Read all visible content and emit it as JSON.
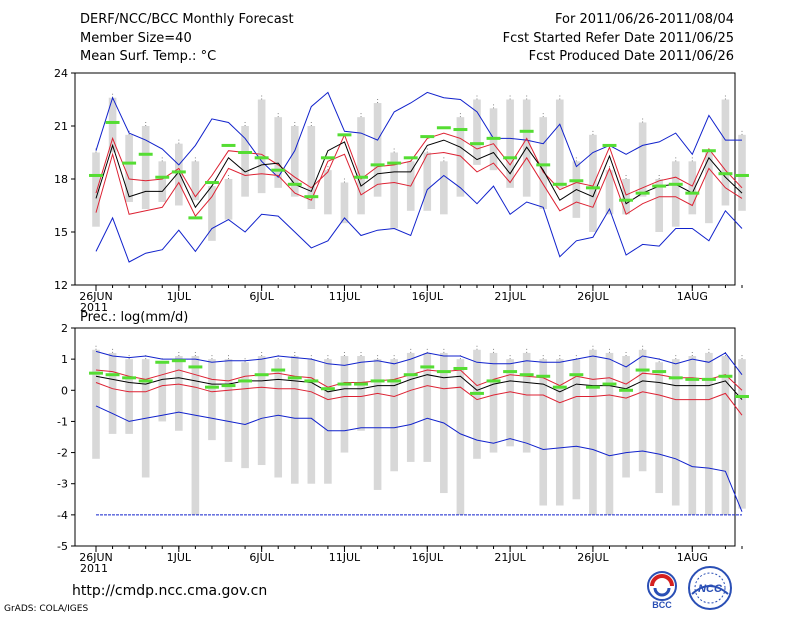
{
  "header": {
    "title": "DERF/NCC/BCC Monthly Forecast",
    "member": "Member Size=40",
    "variable": "Mean Surf. Temp.: °C",
    "range": "For 2011/06/26-2011/08/04",
    "start": "Fcst Started Refer Date 2011/06/25",
    "produced": "Fcst Produced Date 2011/06/26"
  },
  "footer": {
    "url": "http://cmdp.ncc.cma.gov.cn",
    "grads": "GrADS: COLA/IGES",
    "logo_bcc": "BCC",
    "logo_ncc": "NCC"
  },
  "colors": {
    "box": "#d8d8d8",
    "median": "#55dd33",
    "mean": "#000000",
    "inner": "#dd2233",
    "outer": "#1122cc"
  },
  "chart_data": [
    {
      "type": "box-line",
      "title": "Mean Surf. Temp.: °C",
      "xlabel": "",
      "ylabel": "°C",
      "ylim": [
        12,
        24
      ],
      "yticks": [
        12,
        15,
        18,
        21,
        24
      ],
      "xticks": [
        {
          "day": 0,
          "label": "26JUN",
          "sub": "2011"
        },
        {
          "day": 5,
          "label": "1JUL"
        },
        {
          "day": 10,
          "label": "6JUL"
        },
        {
          "day": 15,
          "label": "11JUL"
        },
        {
          "day": 20,
          "label": "16JUL"
        },
        {
          "day": 25,
          "label": "21JUL"
        },
        {
          "day": 30,
          "label": "26JUL"
        },
        {
          "day": 36,
          "label": "1AUG"
        }
      ],
      "days": 40,
      "box_low": [
        15.3,
        19.5,
        16.7,
        16.3,
        16.7,
        16.5,
        16.8,
        14.5,
        15.7,
        17.0,
        17.2,
        17.5,
        17.0,
        16.3,
        16.0,
        15.5,
        16.0,
        17.0,
        15.2,
        16.2,
        16.2,
        16.0,
        17.0,
        18.8,
        18.5,
        17.5,
        17.0,
        16.3,
        17.5,
        15.8,
        15.0,
        16.0,
        16.0,
        17.0,
        15.0,
        15.3,
        16.0,
        15.5,
        16.5,
        16.2
      ],
      "box_high": [
        19.5,
        22.6,
        20.5,
        21.0,
        19.0,
        20.0,
        19.0,
        17.6,
        18.0,
        21.0,
        22.5,
        21.5,
        21.0,
        21.0,
        18.5,
        17.8,
        21.5,
        22.3,
        19.5,
        19.0,
        19.5,
        19.0,
        21.5,
        22.5,
        22.0,
        22.5,
        22.5,
        21.5,
        22.5,
        19.0,
        20.5,
        18.5,
        18.0,
        21.2,
        18.0,
        19.0,
        19.0,
        19.5,
        22.5,
        20.5
      ],
      "series": [
        {
          "name": "median",
          "values": [
            18.2,
            21.2,
            18.9,
            19.4,
            18.1,
            18.4,
            15.8,
            17.8,
            19.9,
            19.5,
            19.2,
            18.5,
            17.7,
            17.0,
            19.2,
            20.5,
            18.1,
            18.8,
            18.9,
            19.2,
            20.4,
            20.9,
            20.8,
            20.0,
            20.3,
            19.2,
            20.7,
            18.8,
            17.7,
            17.9,
            17.5,
            19.9,
            16.8,
            17.2,
            17.6,
            17.7,
            17.2,
            19.6,
            18.3,
            18.2
          ]
        },
        {
          "name": "outer-max",
          "values": [
            19.6,
            22.6,
            20.6,
            20.2,
            19.7,
            18.8,
            19.9,
            21.4,
            21.2,
            20.3,
            19.0,
            18.1,
            19.6,
            22.1,
            22.9,
            20.7,
            20.6,
            20.2,
            21.8,
            22.3,
            22.9,
            22.6,
            22.5,
            21.8,
            20.3,
            20.3,
            20.2,
            20.0,
            21.1,
            18.7,
            19.5,
            19.9,
            19.4,
            19.9,
            20.1,
            20.6,
            19.4,
            21.6,
            20.2,
            20.2
          ]
        },
        {
          "name": "inner-max",
          "values": [
            17.2,
            20.3,
            18.0,
            17.9,
            18.0,
            18.6,
            17.0,
            18.2,
            19.6,
            19.5,
            19.4,
            18.8,
            18.1,
            17.5,
            18.4,
            20.5,
            18.0,
            18.7,
            18.8,
            19.0,
            20.3,
            20.6,
            20.3,
            19.7,
            20.0,
            18.8,
            20.3,
            18.4,
            17.4,
            17.8,
            17.6,
            19.8,
            17.1,
            17.5,
            17.9,
            18.1,
            17.6,
            19.7,
            18.5,
            17.5
          ]
        },
        {
          "name": "mean",
          "values": [
            16.9,
            19.9,
            17.0,
            17.3,
            17.3,
            18.4,
            16.4,
            17.6,
            19.2,
            18.4,
            18.8,
            18.9,
            17.7,
            17.3,
            19.6,
            20.1,
            17.6,
            18.3,
            18.4,
            18.4,
            19.9,
            20.2,
            19.8,
            19.1,
            19.5,
            18.3,
            19.8,
            18.5,
            16.8,
            17.4,
            17.0,
            19.3,
            16.6,
            17.2,
            17.6,
            17.7,
            17.2,
            19.2,
            18.1,
            17.2
          ]
        },
        {
          "name": "inner-min",
          "values": [
            16.1,
            19.4,
            16.0,
            16.2,
            16.4,
            17.8,
            15.9,
            17.0,
            18.6,
            18.2,
            18.3,
            18.2,
            17.2,
            16.8,
            19.0,
            19.4,
            17.1,
            17.7,
            17.8,
            17.6,
            19.4,
            19.5,
            19.3,
            18.4,
            18.9,
            17.8,
            19.2,
            17.7,
            16.2,
            16.7,
            16.4,
            18.6,
            16.0,
            16.6,
            17.0,
            17.0,
            16.5,
            18.6,
            17.5,
            16.9
          ]
        },
        {
          "name": "outer-min",
          "values": [
            13.9,
            15.8,
            13.3,
            13.8,
            14.0,
            15.1,
            13.9,
            15.2,
            15.7,
            15.0,
            16.0,
            15.9,
            15.0,
            14.1,
            14.5,
            15.8,
            14.8,
            15.1,
            15.2,
            14.8,
            17.4,
            18.2,
            17.5,
            16.6,
            17.6,
            16.0,
            16.7,
            16.4,
            13.6,
            14.5,
            14.7,
            16.3,
            13.7,
            14.3,
            14.2,
            15.2,
            15.2,
            14.5,
            16.2,
            15.2
          ]
        }
      ]
    },
    {
      "type": "box-line",
      "title": "Prec.: log(mm/d)",
      "xlabel": "",
      "ylabel": "log(mm/d)",
      "ylim": [
        -5,
        2
      ],
      "yticks": [
        -5,
        -4,
        -3,
        -2,
        -1,
        0,
        1,
        2
      ],
      "xticks": [
        {
          "day": 0,
          "label": "26JUN",
          "sub": "2011"
        },
        {
          "day": 5,
          "label": "1JUL"
        },
        {
          "day": 10,
          "label": "6JUL"
        },
        {
          "day": 15,
          "label": "11JUL"
        },
        {
          "day": 20,
          "label": "16JUL"
        },
        {
          "day": 25,
          "label": "21JUL"
        },
        {
          "day": 30,
          "label": "26JUL"
        },
        {
          "day": 36,
          "label": "1AUG"
        }
      ],
      "days": 40,
      "box_low": [
        -2.2,
        -1.4,
        -1.4,
        -2.8,
        -1.0,
        -1.3,
        -4.0,
        -1.6,
        -2.3,
        -2.5,
        -2.4,
        -2.8,
        -3.0,
        -3.0,
        -3.0,
        -2.0,
        -1.3,
        -3.2,
        -2.6,
        -2.3,
        -2.3,
        -3.3,
        -4.0,
        -2.2,
        -2.0,
        -1.8,
        -2.0,
        -3.7,
        -3.7,
        -3.5,
        -4.0,
        -4.0,
        -2.8,
        -2.6,
        -3.3,
        -3.7,
        -4.0,
        -4.0,
        -4.0,
        -3.8
      ],
      "box_high": [
        1.3,
        1.2,
        1.0,
        1.0,
        0.9,
        1.1,
        1.1,
        1.0,
        1.0,
        0.9,
        1.1,
        1.0,
        1.1,
        1.0,
        1.0,
        1.1,
        1.1,
        1.0,
        1.0,
        1.2,
        1.2,
        1.2,
        1.0,
        1.3,
        1.2,
        1.0,
        1.2,
        1.0,
        1.0,
        1.0,
        1.3,
        1.2,
        1.1,
        1.3,
        0.9,
        1.0,
        1.1,
        1.2,
        1.1,
        1.0
      ],
      "series": [
        {
          "name": "median",
          "values": [
            0.55,
            0.5,
            0.4,
            0.3,
            0.9,
            0.95,
            0.75,
            0.1,
            0.15,
            0.3,
            0.5,
            0.65,
            0.4,
            0.3,
            0.05,
            0.2,
            0.2,
            0.3,
            0.3,
            0.5,
            0.75,
            0.6,
            0.7,
            -0.1,
            0.3,
            0.6,
            0.5,
            0.45,
            0.1,
            0.5,
            0.1,
            0.2,
            0.0,
            0.65,
            0.6,
            0.4,
            0.35,
            0.35,
            0.45,
            -0.2
          ]
        },
        {
          "name": "outer-max",
          "values": [
            1.25,
            1.1,
            1.05,
            1.1,
            1.0,
            1.0,
            1.0,
            0.9,
            0.95,
            0.95,
            1.0,
            1.1,
            1.05,
            1.0,
            0.85,
            0.8,
            0.9,
            0.95,
            0.85,
            1.0,
            1.2,
            1.1,
            1.1,
            0.9,
            0.85,
            0.85,
            0.95,
            0.9,
            0.9,
            1.0,
            1.1,
            1.0,
            0.75,
            1.1,
            1.0,
            0.85,
            1.0,
            0.9,
            1.2,
            0.5
          ]
        },
        {
          "name": "inner-max",
          "values": [
            0.65,
            0.6,
            0.45,
            0.35,
            0.5,
            0.65,
            0.5,
            0.35,
            0.3,
            0.45,
            0.5,
            0.55,
            0.45,
            0.4,
            0.1,
            0.25,
            0.25,
            0.3,
            0.35,
            0.5,
            0.65,
            0.6,
            0.65,
            0.15,
            0.35,
            0.5,
            0.45,
            0.4,
            0.15,
            0.45,
            0.35,
            0.4,
            0.2,
            0.55,
            0.5,
            0.4,
            0.4,
            0.35,
            0.5,
            0.0
          ]
        },
        {
          "name": "mean",
          "values": [
            0.45,
            0.35,
            0.25,
            0.2,
            0.35,
            0.4,
            0.3,
            0.2,
            0.2,
            0.3,
            0.3,
            0.35,
            0.3,
            0.25,
            -0.05,
            0.05,
            0.05,
            0.15,
            0.15,
            0.35,
            0.5,
            0.4,
            0.45,
            0.0,
            0.2,
            0.3,
            0.25,
            0.2,
            -0.05,
            0.2,
            0.15,
            0.15,
            0.05,
            0.3,
            0.25,
            0.15,
            0.15,
            0.15,
            0.3,
            -0.3
          ]
        },
        {
          "name": "inner-min",
          "values": [
            0.25,
            0.05,
            -0.05,
            -0.05,
            0.15,
            0.2,
            0.1,
            -0.05,
            0.0,
            0.05,
            0.1,
            0.05,
            0.05,
            -0.05,
            -0.3,
            -0.2,
            -0.2,
            -0.1,
            -0.2,
            0.0,
            0.15,
            0.05,
            0.1,
            -0.3,
            -0.15,
            -0.05,
            -0.15,
            -0.15,
            -0.4,
            -0.2,
            -0.2,
            -0.15,
            -0.25,
            -0.05,
            -0.15,
            -0.3,
            -0.3,
            -0.3,
            -0.1,
            -0.8
          ]
        },
        {
          "name": "outer-min",
          "values": [
            -0.5,
            -0.75,
            -1.0,
            -0.9,
            -0.8,
            -0.7,
            -0.8,
            -0.9,
            -1.0,
            -1.1,
            -0.9,
            -0.8,
            -0.9,
            -0.9,
            -1.3,
            -1.3,
            -1.2,
            -1.2,
            -1.2,
            -1.1,
            -0.9,
            -1.05,
            -1.4,
            -1.6,
            -1.7,
            -1.55,
            -1.7,
            -1.9,
            -1.85,
            -1.8,
            -1.9,
            -2.1,
            -2.0,
            -1.95,
            -2.05,
            -2.2,
            -2.45,
            -2.5,
            -2.6,
            -3.9
          ]
        },
        {
          "name": "floor",
          "values": [
            -4,
            -4,
            -4,
            -4,
            -4,
            -4,
            -4,
            -4,
            -4,
            -4,
            -4,
            -4,
            -4,
            -4,
            -4,
            -4,
            -4,
            -4,
            -4,
            -4,
            -4,
            -4,
            -4,
            -4,
            -4,
            -4,
            -4,
            -4,
            -4,
            -4,
            -4,
            -4,
            -4,
            -4,
            -4,
            -4,
            -4,
            -4,
            -4,
            -4
          ]
        }
      ]
    }
  ]
}
